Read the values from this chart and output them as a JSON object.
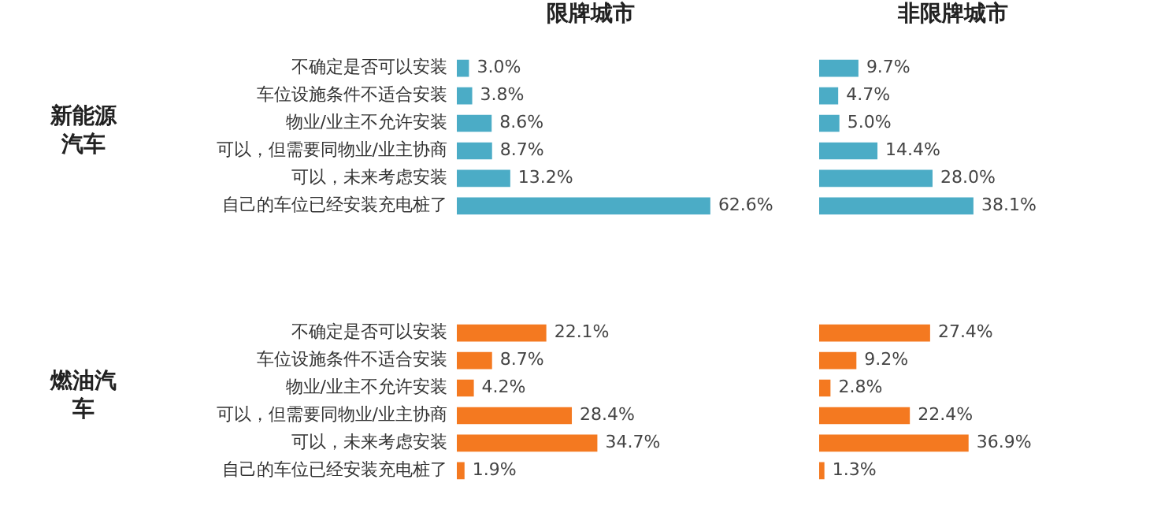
{
  "chart_data": [
    {
      "type": "bar",
      "orientation": "horizontal",
      "title": "限牌城市",
      "ylabel": "新能源汽车",
      "categories": [
        "不确定是否可以安装",
        "车位设施条件不适合安装",
        "物业/业主不允许安装",
        "可以，但需要同物业/业主协商",
        "可以，未来考虑安装",
        "自己的车位已经安装充电桩了"
      ],
      "values": [
        3.0,
        3.8,
        8.6,
        8.7,
        13.2,
        62.6
      ],
      "value_labels": [
        "3.0%",
        "3.8%",
        "8.6%",
        "8.7%",
        "13.2%",
        "62.6%"
      ],
      "color": "#4bacc6",
      "tick_labels": "y"
    },
    {
      "type": "bar",
      "orientation": "horizontal",
      "title": "非限牌城市",
      "categories": [
        null,
        null,
        null,
        null,
        null,
        null
      ],
      "values": [
        9.7,
        4.7,
        5.0,
        14.4,
        28.0,
        38.1
      ],
      "value_labels": [
        "9.7%",
        "4.7%",
        "5.0%",
        "14.4%",
        "28.0%",
        "38.1%"
      ],
      "color": "#4bacc6",
      "tick_labels": false
    },
    {
      "type": "bar",
      "orientation": "horizontal",
      "ylabel": "燃油汽车",
      "categories": [
        "不确定是否可以安装",
        "车位设施条件不适合安装",
        "物业/业主不允许安装",
        "可以，但需要同物业/业主协商",
        "可以，未来考虑安装",
        "自己的车位已经安装充电桩了"
      ],
      "values": [
        22.1,
        8.7,
        4.2,
        28.4,
        34.7,
        1.9
      ],
      "value_labels": [
        "22.1%",
        "8.7%",
        "4.2%",
        "28.4%",
        "34.7%",
        "1.9%"
      ],
      "color": "#f47920",
      "tick_labels": "y"
    },
    {
      "type": "bar",
      "orientation": "horizontal",
      "categories": [
        null,
        null,
        null,
        null,
        null,
        null
      ],
      "values": [
        27.4,
        9.2,
        2.8,
        22.4,
        36.9,
        1.3
      ],
      "value_labels": [
        "27.4%",
        "9.2%",
        "2.8%",
        "22.4%",
        "36.9%",
        "1.3%"
      ],
      "color": "#f47920",
      "tick_labels": false
    }
  ]
}
